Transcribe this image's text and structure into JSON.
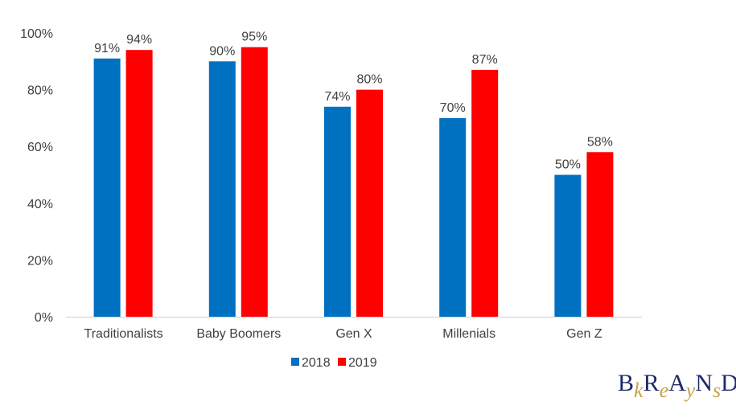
{
  "chart_data": {
    "type": "bar",
    "title": "",
    "xlabel": "",
    "ylabel": "",
    "categories": [
      "Traditionalists",
      "Baby Boomers",
      "Gen X",
      "Millenials",
      "Gen Z"
    ],
    "series": [
      {
        "name": "2018",
        "values": [
          91,
          90,
          74,
          70,
          50
        ],
        "color": "#0070C0"
      },
      {
        "name": "2019",
        "values": [
          94,
          95,
          80,
          87,
          58
        ],
        "color": "#FF0000"
      }
    ],
    "ylim": [
      0,
      100
    ],
    "yticks": [
      0,
      20,
      40,
      60,
      80,
      100
    ],
    "ytick_labels": [
      "0%",
      "20%",
      "40%",
      "60%",
      "80%",
      "100%"
    ],
    "data_label_suffix": "%",
    "grid": false,
    "legend": "bottom"
  },
  "logo": {
    "text": "BkReAyNsD",
    "registered": "®"
  }
}
